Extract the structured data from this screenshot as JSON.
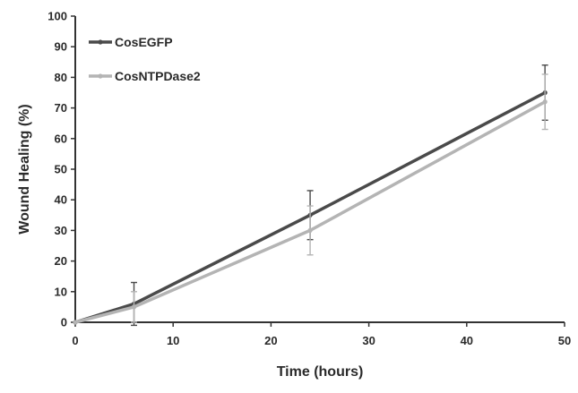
{
  "chart_data": {
    "type": "line",
    "xlabel": "Time (hours)",
    "ylabel": "Wound Healing (%)",
    "xlim": [
      0,
      50
    ],
    "ylim": [
      0,
      100
    ],
    "xticks": [
      0,
      10,
      20,
      30,
      40,
      50
    ],
    "yticks": [
      0,
      10,
      20,
      30,
      40,
      50,
      60,
      70,
      80,
      90,
      100
    ],
    "grid": false,
    "legend_position": "top-left",
    "series": [
      {
        "name": "CosEGFP",
        "color": "#4a4a4a",
        "x": [
          0,
          6,
          24,
          48
        ],
        "y": [
          0,
          6,
          35,
          75
        ],
        "error": [
          0,
          7,
          8,
          9
        ]
      },
      {
        "name": "CosNTPDase2",
        "color": "#b4b4b4",
        "x": [
          0,
          6,
          24,
          48
        ],
        "y": [
          0,
          5,
          30,
          72
        ],
        "error": [
          0,
          5,
          8,
          9
        ]
      }
    ]
  }
}
